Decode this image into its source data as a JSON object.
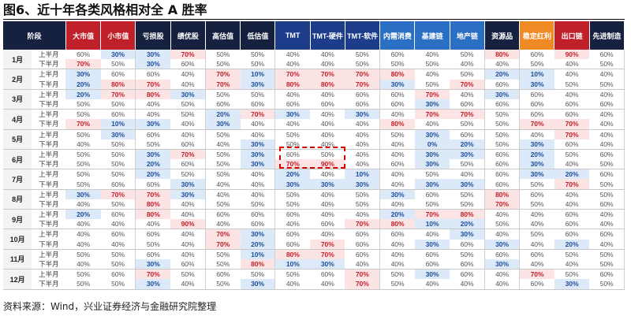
{
  "title": "图6、近十年各类风格相对全 A 胜率",
  "source": "资料来源：Wind，兴业证券经济与金融研究院整理",
  "colors": {
    "header_default": "#16213f",
    "header_red": "#c0202a",
    "header_blue": "#2b6fc4",
    "header_orange": "#f08a24",
    "low_fill": "#dbe9f8",
    "high_fill": "#fde4e4",
    "highlight_box": "#d40000"
  },
  "table": {
    "stage_header": "阶段",
    "columns": [
      "大市值",
      "小市值",
      "亏损股",
      "绩优股",
      "高估值",
      "低估值",
      "TMT",
      "TMT-硬件",
      "TMT-软件",
      "内需消费",
      "基建链",
      "地产链",
      "资源品",
      "稳定红利",
      "出口链",
      "先进制造"
    ],
    "half_labels": [
      "上半月",
      "下半月"
    ],
    "months": [
      {
        "month": "1月",
        "rows": [
          [
            "60%",
            "30%",
            "30%",
            "70%",
            "50%",
            "50%",
            "40%",
            "40%",
            "50%",
            "60%",
            "40%",
            "50%",
            "80%",
            "60%",
            "90%",
            "60%"
          ],
          [
            "70%",
            "50%",
            "30%",
            "60%",
            "50%",
            "50%",
            "40%",
            "40%",
            "50%",
            "50%",
            "50%",
            "40%",
            "40%",
            "50%",
            "40%",
            "50%"
          ]
        ]
      },
      {
        "month": "2月",
        "rows": [
          [
            "30%",
            "60%",
            "60%",
            "40%",
            "70%",
            "10%",
            "70%",
            "70%",
            "70%",
            "80%",
            "40%",
            "50%",
            "20%",
            "10%",
            "40%",
            "40%"
          ],
          [
            "20%",
            "80%",
            "70%",
            "40%",
            "70%",
            "30%",
            "80%",
            "80%",
            "70%",
            "30%",
            "50%",
            "70%",
            "60%",
            "30%",
            "50%",
            "50%"
          ]
        ]
      },
      {
        "month": "3月",
        "rows": [
          [
            "20%",
            "70%",
            "80%",
            "30%",
            "50%",
            "50%",
            "40%",
            "40%",
            "60%",
            "60%",
            "70%",
            "40%",
            "30%",
            "60%",
            "40%",
            "40%"
          ],
          [
            "50%",
            "50%",
            "40%",
            "50%",
            "60%",
            "60%",
            "60%",
            "60%",
            "60%",
            "60%",
            "30%",
            "60%",
            "60%",
            "60%",
            "60%",
            "60%"
          ]
        ]
      },
      {
        "month": "4月",
        "rows": [
          [
            "50%",
            "60%",
            "40%",
            "50%",
            "20%",
            "70%",
            "30%",
            "40%",
            "30%",
            "40%",
            "70%",
            "70%",
            "50%",
            "60%",
            "60%",
            "40%"
          ],
          [
            "70%",
            "10%",
            "30%",
            "40%",
            "30%",
            "40%",
            "40%",
            "40%",
            "40%",
            "80%",
            "40%",
            "50%",
            "50%",
            "70%",
            "70%",
            "40%"
          ]
        ]
      },
      {
        "month": "5月",
        "rows": [
          [
            "50%",
            "30%",
            "60%",
            "40%",
            "50%",
            "40%",
            "50%",
            "40%",
            "40%",
            "50%",
            "30%",
            "60%",
            "50%",
            "40%",
            "70%",
            "40%"
          ],
          [
            "40%",
            "50%",
            "50%",
            "60%",
            "40%",
            "30%",
            "50%",
            "40%",
            "40%",
            "40%",
            "0%",
            "20%",
            "50%",
            "30%",
            "60%",
            "40%"
          ]
        ]
      },
      {
        "month": "6月",
        "rows": [
          [
            "50%",
            "50%",
            "30%",
            "70%",
            "50%",
            "30%",
            "60%",
            "50%",
            "40%",
            "40%",
            "30%",
            "30%",
            "60%",
            "20%",
            "50%",
            "60%"
          ],
          [
            "50%",
            "50%",
            "20%",
            "60%",
            "50%",
            "30%",
            "70%",
            "90%",
            "40%",
            "60%",
            "30%",
            "50%",
            "60%",
            "30%",
            "40%",
            "50%"
          ]
        ]
      },
      {
        "month": "7月",
        "rows": [
          [
            "50%",
            "50%",
            "20%",
            "50%",
            "50%",
            "40%",
            "20%",
            "40%",
            "10%",
            "40%",
            "50%",
            "40%",
            "60%",
            "30%",
            "20%",
            "60%"
          ],
          [
            "50%",
            "60%",
            "60%",
            "30%",
            "40%",
            "40%",
            "30%",
            "30%",
            "30%",
            "40%",
            "30%",
            "30%",
            "60%",
            "50%",
            "70%",
            "50%"
          ]
        ]
      },
      {
        "month": "8月",
        "rows": [
          [
            "30%",
            "70%",
            "70%",
            "30%",
            "40%",
            "40%",
            "50%",
            "40%",
            "50%",
            "30%",
            "60%",
            "50%",
            "80%",
            "60%",
            "40%",
            "50%"
          ],
          [
            "40%",
            "50%",
            "80%",
            "40%",
            "50%",
            "50%",
            "50%",
            "40%",
            "50%",
            "40%",
            "50%",
            "50%",
            "70%",
            "50%",
            "40%",
            "60%"
          ]
        ]
      },
      {
        "month": "9月",
        "rows": [
          [
            "20%",
            "60%",
            "80%",
            "40%",
            "60%",
            "60%",
            "60%",
            "40%",
            "40%",
            "20%",
            "70%",
            "80%",
            "40%",
            "40%",
            "60%",
            "40%"
          ],
          [
            "40%",
            "40%",
            "40%",
            "90%",
            "40%",
            "60%",
            "40%",
            "60%",
            "70%",
            "80%",
            "10%",
            "20%",
            "50%",
            "40%",
            "60%",
            "40%"
          ]
        ]
      },
      {
        "month": "10月",
        "rows": [
          [
            "40%",
            "60%",
            "60%",
            "40%",
            "70%",
            "30%",
            "60%",
            "40%",
            "60%",
            "60%",
            "40%",
            "30%",
            "40%",
            "50%",
            "60%",
            "60%"
          ],
          [
            "40%",
            "40%",
            "50%",
            "40%",
            "70%",
            "20%",
            "60%",
            "70%",
            "60%",
            "40%",
            "30%",
            "60%",
            "30%",
            "40%",
            "20%",
            "40%"
          ]
        ]
      },
      {
        "month": "11月",
        "rows": [
          [
            "50%",
            "50%",
            "60%",
            "40%",
            "50%",
            "10%",
            "80%",
            "70%",
            "60%",
            "40%",
            "60%",
            "50%",
            "60%",
            "60%",
            "50%",
            "50%"
          ],
          [
            "40%",
            "50%",
            "30%",
            "60%",
            "50%",
            "80%",
            "10%",
            "30%",
            "40%",
            "40%",
            "60%",
            "60%",
            "30%",
            "40%",
            "40%",
            "50%"
          ]
        ]
      },
      {
        "month": "12月",
        "rows": [
          [
            "50%",
            "60%",
            "70%",
            "50%",
            "60%",
            "50%",
            "50%",
            "60%",
            "70%",
            "50%",
            "30%",
            "60%",
            "40%",
            "70%",
            "50%",
            "60%"
          ],
          [
            "50%",
            "50%",
            "30%",
            "40%",
            "50%",
            "30%",
            "40%",
            "40%",
            "70%",
            "50%",
            "40%",
            "40%",
            "40%",
            "60%",
            "30%",
            "50%"
          ]
        ]
      }
    ]
  }
}
